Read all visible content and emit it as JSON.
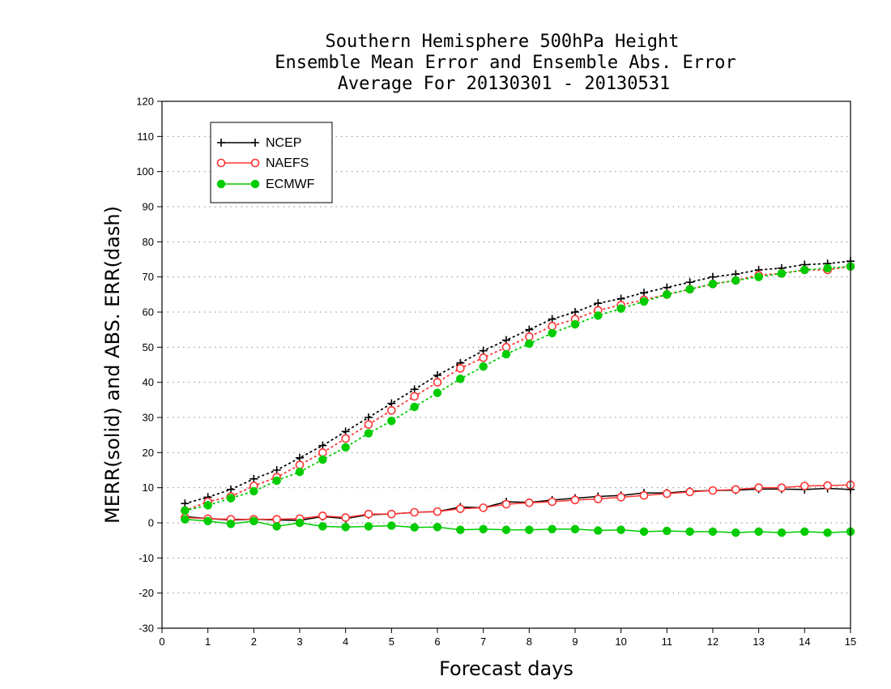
{
  "chart_data": {
    "type": "line",
    "title_lines": [
      "Southern Hemisphere 500hPa Height",
      "Ensemble Mean Error and Ensemble Abs. Error",
      "Average For 20130301 - 20130531"
    ],
    "xlabel": "Forecast days",
    "ylabel": "MERR(solid) and ABS. ERR(dash)",
    "xlim": [
      0,
      15
    ],
    "ylim": [
      -30,
      120
    ],
    "x_ticks": [
      0,
      1,
      2,
      3,
      4,
      5,
      6,
      7,
      8,
      9,
      10,
      11,
      12,
      13,
      14,
      15
    ],
    "y_ticks": [
      -30,
      -20,
      -10,
      0,
      10,
      20,
      30,
      40,
      50,
      60,
      70,
      80,
      90,
      100,
      110,
      120
    ],
    "grid": "horizontal dotted",
    "legend_position": "top-left",
    "x": [
      0.5,
      1,
      1.5,
      2,
      2.5,
      3,
      3.5,
      4,
      4.5,
      5,
      5.5,
      6,
      6.5,
      7,
      7.5,
      8,
      8.5,
      9,
      9.5,
      10,
      10.5,
      11,
      11.5,
      12,
      12.5,
      13,
      13.5,
      14,
      14.5,
      15
    ],
    "series": [
      {
        "name": "NCEP",
        "color": "#000000",
        "marker": "plus",
        "merr": [
          1.8,
          1.2,
          0.8,
          1.0,
          0.8,
          0.7,
          1.8,
          1.2,
          2.3,
          2.5,
          3.0,
          3.2,
          4.5,
          4.3,
          6.0,
          5.8,
          6.5,
          7.0,
          7.5,
          7.8,
          8.5,
          8.5,
          9.0,
          9.2,
          9.3,
          9.6,
          9.6,
          9.5,
          9.8,
          9.5
        ],
        "abs_err": [
          5.5,
          7.3,
          9.5,
          12.5,
          15.0,
          18.5,
          22.0,
          26.0,
          30.0,
          34.0,
          38.0,
          42.0,
          45.5,
          49.0,
          52.0,
          55.0,
          58.0,
          60.0,
          62.5,
          63.8,
          65.5,
          67.0,
          68.5,
          70.0,
          70.8,
          72.0,
          72.5,
          73.5,
          73.8,
          74.5
        ]
      },
      {
        "name": "NAEFS",
        "color": "#ff3333",
        "marker": "open-circle",
        "merr": [
          1.5,
          1.2,
          1.0,
          1.0,
          1.0,
          1.2,
          2.0,
          1.5,
          2.5,
          2.5,
          3.0,
          3.2,
          4.0,
          4.3,
          5.3,
          5.7,
          6.0,
          6.5,
          6.8,
          7.3,
          7.8,
          8.3,
          8.8,
          9.2,
          9.5,
          10.0,
          10.0,
          10.5,
          10.6,
          10.8
        ],
        "abs_err": [
          3.5,
          6.0,
          7.5,
          10.5,
          13.0,
          16.5,
          20.0,
          24.0,
          28.0,
          32.0,
          36.0,
          40.0,
          44.0,
          47.0,
          50.0,
          53.0,
          56.0,
          58.0,
          60.5,
          62.0,
          63.5,
          65.0,
          66.5,
          68.0,
          69.0,
          70.5,
          71.0,
          72.0,
          72.0,
          73.0
        ]
      },
      {
        "name": "ECMWF",
        "color": "#00cc00",
        "marker": "filled-circle",
        "merr": [
          1.0,
          0.5,
          -0.3,
          0.5,
          -1.0,
          0.0,
          -1.0,
          -1.2,
          -1.0,
          -0.8,
          -1.3,
          -1.2,
          -2.0,
          -1.8,
          -2.0,
          -2.0,
          -1.8,
          -1.8,
          -2.2,
          -2.0,
          -2.5,
          -2.3,
          -2.5,
          -2.5,
          -2.8,
          -2.5,
          -2.8,
          -2.5,
          -2.8,
          -2.5
        ],
        "abs_err": [
          3.5,
          5.0,
          7.0,
          9.0,
          12.0,
          14.5,
          18.0,
          21.5,
          25.5,
          29.0,
          33.0,
          37.0,
          41.0,
          44.5,
          48.0,
          51.0,
          54.0,
          56.5,
          59.0,
          61.0,
          63.0,
          65.0,
          66.5,
          68.0,
          69.0,
          70.0,
          71.0,
          72.0,
          72.5,
          73.0
        ]
      }
    ]
  }
}
